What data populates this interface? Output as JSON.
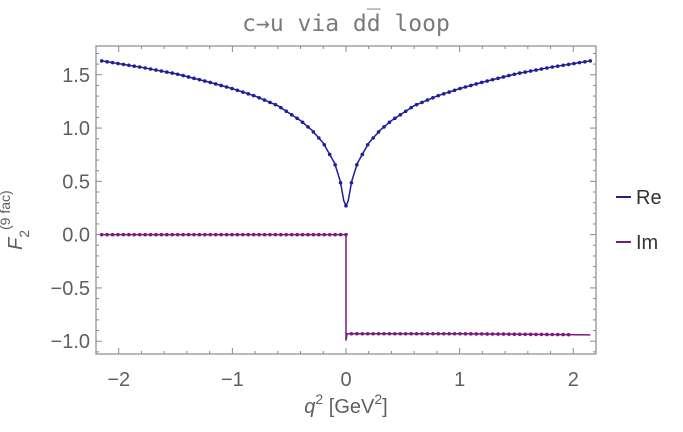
{
  "chart_data": {
    "type": "line",
    "title": "c→u via dd̅ loop",
    "xlabel": {
      "main": "q",
      "sup": "2",
      "unit_open": " [GeV",
      "unit_sup": "2",
      "unit_close": "]"
    },
    "ylabel": {
      "main": "F",
      "sub": "2",
      "sup": "(9 fac)"
    },
    "xlim": [
      -2.2,
      2.2
    ],
    "ylim": [
      -1.12,
      1.77
    ],
    "x_ticks": [
      -2,
      -1,
      0,
      1,
      2
    ],
    "x_tick_labels": [
      "−2",
      "−1",
      "0",
      "1",
      "2"
    ],
    "y_ticks": [
      -1.0,
      -0.5,
      0.0,
      0.5,
      1.0,
      1.5
    ],
    "y_tick_labels": [
      "−1.0",
      "−0.5",
      "0.0",
      "0.5",
      "1.0",
      "1.5"
    ],
    "legend_position": "right",
    "series": [
      {
        "name": "Re",
        "color": "#1f1f96",
        "x": [
          -2.15,
          -1.8,
          -1.5,
          -1.2,
          -1.0,
          -0.8,
          -0.6,
          -0.4,
          -0.3,
          -0.2,
          -0.1,
          -0.05,
          -0.02,
          0.0,
          0.02,
          0.05,
          0.1,
          0.2,
          0.3,
          0.4,
          0.6,
          0.8,
          1.0,
          1.2,
          1.5,
          1.8,
          2.15
        ],
        "values": [
          1.63,
          1.57,
          1.51,
          1.43,
          1.37,
          1.3,
          1.21,
          1.07,
          0.98,
          0.86,
          0.67,
          0.5,
          0.32,
          0.27,
          0.32,
          0.5,
          0.67,
          0.86,
          0.98,
          1.07,
          1.21,
          1.3,
          1.37,
          1.43,
          1.51,
          1.57,
          1.63
        ]
      },
      {
        "name": "Im",
        "color": "#7a1a7a",
        "x": [
          -2.15,
          -1.0,
          -0.01,
          0.0,
          0.0,
          0.01,
          0.1,
          1.0,
          2.15
        ],
        "values": [
          0.0,
          0.0,
          0.0,
          0.0,
          -0.99,
          -0.93,
          -0.93,
          -0.93,
          -0.94
        ]
      }
    ]
  }
}
